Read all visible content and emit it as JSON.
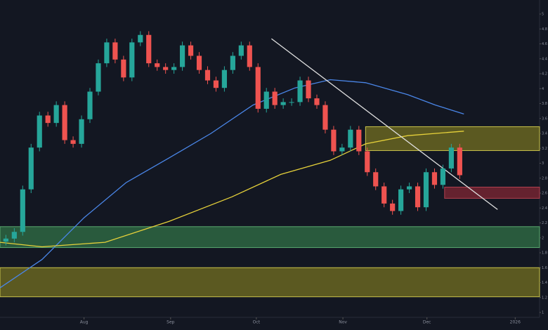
{
  "chart_data": {
    "type": "candlestick",
    "background": "#131722",
    "up_color": "#26a69a",
    "down_color": "#ef5350",
    "grid": false,
    "xlim": [
      -0.7,
      63.5
    ],
    "ylim": [
      1.0,
      5.0
    ],
    "yticks": [
      1.0,
      1.2,
      1.4,
      1.6,
      1.8,
      2.0,
      2.2,
      2.4,
      2.6,
      2.8,
      3.0,
      3.2,
      3.4,
      3.6,
      3.8,
      4.0,
      4.2,
      4.4,
      4.6,
      4.8,
      5.0
    ],
    "xticks": [
      {
        "value": 9.3,
        "label": "Aug"
      },
      {
        "value": 19.6,
        "label": "Sep"
      },
      {
        "value": 29.8,
        "label": "Oct"
      },
      {
        "value": 40.1,
        "label": "Nov"
      },
      {
        "value": 50.1,
        "label": "Dec"
      },
      {
        "value": 60.6,
        "label": "2026"
      }
    ],
    "x": [
      0,
      1,
      2,
      3,
      4,
      5,
      6,
      7,
      8,
      9,
      10,
      11,
      12,
      13,
      14,
      15,
      16,
      17,
      18,
      19,
      20,
      21,
      22,
      23,
      24,
      25,
      26,
      27,
      28,
      29,
      30,
      31,
      32,
      33,
      34,
      35,
      36,
      37,
      38,
      39,
      40,
      41,
      42,
      43,
      44,
      45,
      46,
      47,
      48,
      49,
      50,
      51,
      52,
      53,
      54
    ],
    "open": [
      1.95,
      1.99,
      2.08,
      2.65,
      3.21,
      3.64,
      3.54,
      3.78,
      3.31,
      3.26,
      3.59,
      3.96,
      4.34,
      4.62,
      4.39,
      4.15,
      4.62,
      4.72,
      4.34,
      4.29,
      4.25,
      4.29,
      4.58,
      4.44,
      4.25,
      4.11,
      4.01,
      4.25,
      4.44,
      4.58,
      4.29,
      3.73,
      3.96,
      3.78,
      3.82,
      3.82,
      4.11,
      3.87,
      3.78,
      3.45,
      3.16,
      3.21,
      3.45,
      3.16,
      2.88,
      2.69,
      2.46,
      2.36,
      2.65,
      2.69,
      2.41,
      2.88,
      2.71,
      2.93,
      3.21
    ],
    "high": [
      2.04,
      2.13,
      2.7,
      3.26,
      3.69,
      3.69,
      3.83,
      3.83,
      3.36,
      3.64,
      4.01,
      4.39,
      4.67,
      4.67,
      4.44,
      4.67,
      4.77,
      4.77,
      4.39,
      4.34,
      4.34,
      4.63,
      4.63,
      4.49,
      4.3,
      4.16,
      4.3,
      4.49,
      4.63,
      4.63,
      4.34,
      4.01,
      4.01,
      3.87,
      3.87,
      4.16,
      4.16,
      3.92,
      3.83,
      3.5,
      3.26,
      3.5,
      3.5,
      3.21,
      2.93,
      2.74,
      2.51,
      2.7,
      2.74,
      2.74,
      2.93,
      2.93,
      2.98,
      3.26,
      3.26
    ],
    "low": [
      1.9,
      1.94,
      2.03,
      2.6,
      3.16,
      3.49,
      3.49,
      3.26,
      3.21,
      3.21,
      3.54,
      3.91,
      4.29,
      4.34,
      4.1,
      4.1,
      4.57,
      4.29,
      4.24,
      4.2,
      4.2,
      4.24,
      4.39,
      4.2,
      4.06,
      3.96,
      3.96,
      4.2,
      4.39,
      4.24,
      3.68,
      3.68,
      3.73,
      3.73,
      3.77,
      3.77,
      3.82,
      3.73,
      3.4,
      3.11,
      3.11,
      3.16,
      3.11,
      2.83,
      2.64,
      2.41,
      2.31,
      2.31,
      2.6,
      2.36,
      2.36,
      2.66,
      2.66,
      2.88,
      2.79
    ],
    "close": [
      1.99,
      2.08,
      2.65,
      3.21,
      3.64,
      3.54,
      3.78,
      3.31,
      3.26,
      3.59,
      3.96,
      4.34,
      4.62,
      4.39,
      4.15,
      4.62,
      4.72,
      4.34,
      4.29,
      4.25,
      4.29,
      4.58,
      4.44,
      4.25,
      4.11,
      4.01,
      4.25,
      4.44,
      4.58,
      4.29,
      3.73,
      3.96,
      3.78,
      3.82,
      3.82,
      4.11,
      3.87,
      3.78,
      3.45,
      3.16,
      3.21,
      3.45,
      3.16,
      2.88,
      2.69,
      2.46,
      2.36,
      2.65,
      2.69,
      2.41,
      2.88,
      2.71,
      2.93,
      3.21,
      2.84
    ],
    "lines": [
      {
        "color": "#4a86e8",
        "x": [
          -0.7,
          4.3,
          9.3,
          14.3,
          19.4,
          24.4,
          29.4,
          34.4,
          38.6,
          42.8,
          47.8,
          51.1,
          54.5
        ],
        "values": [
          1.33,
          1.71,
          2.27,
          2.74,
          3.07,
          3.4,
          3.78,
          4.01,
          4.12,
          4.08,
          3.92,
          3.78,
          3.66
        ]
      },
      {
        "color": "#e6d13a",
        "x": [
          -0.7,
          4.3,
          11.8,
          19.4,
          26.9,
          32.7,
          38.6,
          42.8,
          47.8,
          54.5
        ],
        "values": [
          1.94,
          1.88,
          1.94,
          2.22,
          2.55,
          2.85,
          3.04,
          3.26,
          3.37,
          3.43
        ]
      },
      {
        "color": "#e0e0e0",
        "x": [
          31.6,
          58.5
        ],
        "values": [
          4.67,
          2.38
        ]
      }
    ],
    "zones": [
      {
        "color": "#2f6b45",
        "border": "#5aa86f",
        "x": [
          -0.7,
          63.5
        ],
        "y": [
          1.87,
          2.15
        ]
      },
      {
        "color": "#6e6a22",
        "border": "#c9c24a",
        "x": [
          -0.7,
          63.5
        ],
        "y": [
          1.21,
          1.6
        ]
      },
      {
        "color": "#6e6a22",
        "border": "#c9c24a",
        "x": [
          42.8,
          63.5
        ],
        "y": [
          3.17,
          3.49
        ]
      },
      {
        "color": "#7a2633",
        "border": "#b0404f",
        "x": [
          52.2,
          63.5
        ],
        "y": [
          2.53,
          2.68
        ]
      }
    ]
  }
}
